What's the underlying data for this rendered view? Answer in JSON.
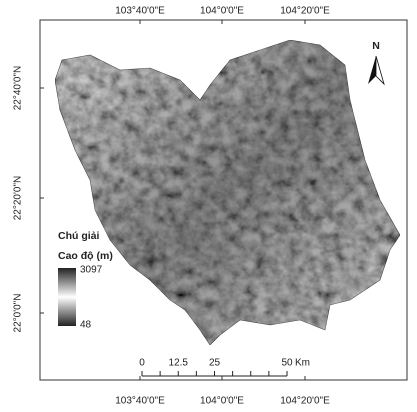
{
  "map": {
    "top_labels": [
      "103°40'0\"E",
      "104°0'0\"E",
      "104°20'0\"E"
    ],
    "bottom_labels": [
      "103°40'0\"E",
      "104°0'0\"E",
      "104°20'0\"E"
    ],
    "left_labels": [
      "22°40'0\"N",
      "22°20'0\"N",
      "22°0'0\"N"
    ],
    "north": "N",
    "legend": {
      "title": "Chú giải",
      "subtitle": "Cao độ (m)",
      "max": 3097,
      "min": 48
    },
    "scale_bar": {
      "ticks": [
        0,
        12.5,
        25,
        50
      ],
      "unit": "Km"
    }
  }
}
